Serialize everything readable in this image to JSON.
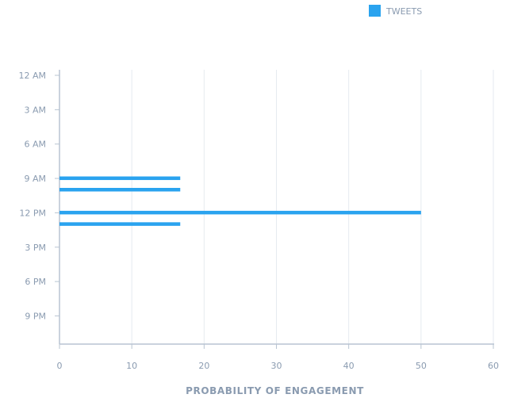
{
  "chart_data": {
    "type": "bar",
    "orientation": "horizontal",
    "legend": {
      "position": "top-right",
      "entries": [
        {
          "label": "TWEETS",
          "color": "#2aa3ef"
        }
      ]
    },
    "xlabel": "PROBABILITY OF ENGAGEMENT",
    "ylabel": "",
    "xlim": [
      0,
      60
    ],
    "x_ticks": [
      0,
      10,
      20,
      30,
      40,
      50,
      60
    ],
    "y_tick_labels": [
      "12 AM",
      "3 AM",
      "6 AM",
      "9 AM",
      "12 PM",
      "3 PM",
      "6 PM",
      "9 PM"
    ],
    "y_range_hours": [
      0,
      24
    ],
    "grid": "vertical",
    "series": [
      {
        "name": "TWEETS",
        "color": "#2aa3ef",
        "bars": [
          {
            "hour": 9,
            "value": 16.7
          },
          {
            "hour": 10,
            "value": 16.7
          },
          {
            "hour": 12,
            "value": 50
          },
          {
            "hour": 13,
            "value": 16.7
          }
        ]
      }
    ],
    "colors": {
      "axis": "#b8c4d2",
      "grid": "#e6eaf0",
      "text": "#8a9bb0"
    }
  }
}
